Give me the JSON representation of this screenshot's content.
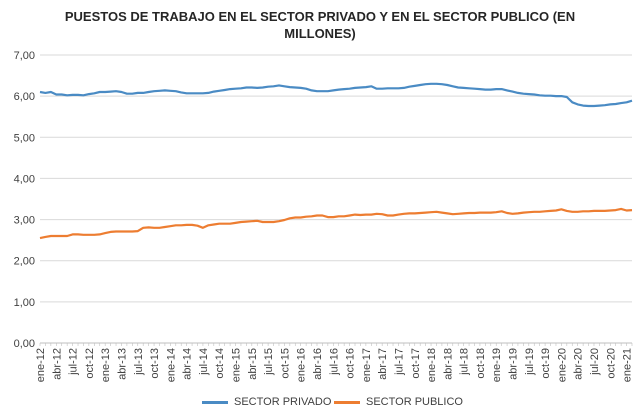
{
  "chart_data": {
    "type": "line",
    "title_line1": "PUESTOS DE TRABAJO  EN EL SECTOR PRIVADO Y EN EL SECTOR PUBLICO (EN",
    "title_line2": "MILLONES)",
    "xlabel": "",
    "ylabel": "",
    "ylim": [
      0,
      7
    ],
    "y_ticks": [
      "0,00",
      "1,00",
      "2,00",
      "3,00",
      "4,00",
      "5,00",
      "6,00",
      "7,00"
    ],
    "grid": true,
    "legend_position": "bottom",
    "x_tick_labels": [
      "ene-12",
      "abr-12",
      "jul-12",
      "oct-12",
      "ene-13",
      "abr-13",
      "jul-13",
      "oct-13",
      "ene-14",
      "abr-14",
      "jul-14",
      "oct-14",
      "ene-15",
      "abr-15",
      "jul-15",
      "oct-15",
      "ene-16",
      "abr-16",
      "jul-16",
      "oct-16",
      "ene-17",
      "abr-17",
      "jul-17",
      "oct-17",
      "ene-18",
      "abr-18",
      "jul-18",
      "oct-18",
      "ene-19",
      "abr-19",
      "jul-19",
      "oct-19",
      "ene-20",
      "abr-20",
      "jul-20",
      "oct-20",
      "ene-21"
    ],
    "series": [
      {
        "name": "SECTOR PRIVADO",
        "color": "#4a8bc4",
        "values": [
          6.1,
          6.08,
          6.1,
          6.04,
          6.04,
          6.02,
          6.03,
          6.03,
          6.02,
          6.05,
          6.07,
          6.1,
          6.1,
          6.11,
          6.12,
          6.1,
          6.06,
          6.06,
          6.08,
          6.08,
          6.1,
          6.12,
          6.13,
          6.14,
          6.13,
          6.12,
          6.09,
          6.07,
          6.07,
          6.07,
          6.07,
          6.08,
          6.11,
          6.13,
          6.15,
          6.17,
          6.18,
          6.19,
          6.21,
          6.21,
          6.2,
          6.21,
          6.23,
          6.24,
          6.26,
          6.24,
          6.22,
          6.21,
          6.2,
          6.18,
          6.14,
          6.12,
          6.12,
          6.12,
          6.14,
          6.16,
          6.17,
          6.18,
          6.2,
          6.21,
          6.22,
          6.24,
          6.18,
          6.18,
          6.19,
          6.19,
          6.19,
          6.2,
          6.23,
          6.25,
          6.27,
          6.29,
          6.3,
          6.3,
          6.29,
          6.27,
          6.24,
          6.21,
          6.2,
          6.19,
          6.18,
          6.17,
          6.16,
          6.16,
          6.17,
          6.17,
          6.14,
          6.11,
          6.08,
          6.06,
          6.05,
          6.04,
          6.02,
          6.01,
          6.01,
          6.0,
          6.0,
          5.98,
          5.85,
          5.8,
          5.77,
          5.76,
          5.76,
          5.77,
          5.78,
          5.8,
          5.81,
          5.83,
          5.85,
          5.89
        ]
      },
      {
        "name": "SECTOR PUBLICO",
        "color": "#ed7d31",
        "values": [
          2.55,
          2.58,
          2.6,
          2.6,
          2.6,
          2.6,
          2.64,
          2.64,
          2.63,
          2.63,
          2.63,
          2.64,
          2.67,
          2.7,
          2.71,
          2.71,
          2.71,
          2.71,
          2.72,
          2.8,
          2.81,
          2.8,
          2.8,
          2.82,
          2.84,
          2.86,
          2.86,
          2.87,
          2.87,
          2.85,
          2.8,
          2.86,
          2.88,
          2.9,
          2.9,
          2.9,
          2.92,
          2.94,
          2.95,
          2.96,
          2.97,
          2.94,
          2.94,
          2.94,
          2.96,
          2.99,
          3.03,
          3.05,
          3.05,
          3.07,
          3.08,
          3.1,
          3.1,
          3.06,
          3.06,
          3.08,
          3.08,
          3.1,
          3.12,
          3.11,
          3.12,
          3.12,
          3.14,
          3.13,
          3.1,
          3.1,
          3.12,
          3.14,
          3.15,
          3.15,
          3.16,
          3.17,
          3.18,
          3.19,
          3.17,
          3.15,
          3.13,
          3.14,
          3.15,
          3.16,
          3.16,
          3.17,
          3.17,
          3.17,
          3.18,
          3.2,
          3.16,
          3.14,
          3.15,
          3.17,
          3.18,
          3.19,
          3.19,
          3.2,
          3.21,
          3.22,
          3.25,
          3.21,
          3.19,
          3.19,
          3.2,
          3.2,
          3.21,
          3.21,
          3.21,
          3.22,
          3.23,
          3.26,
          3.22,
          3.23
        ]
      }
    ]
  }
}
